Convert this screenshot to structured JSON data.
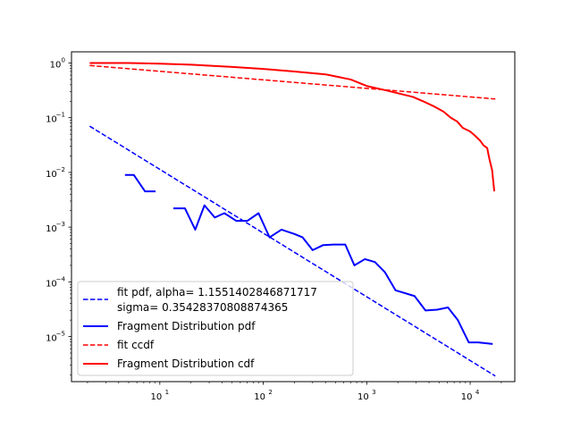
{
  "chart_data": {
    "type": "line",
    "title": "",
    "xlabel": "",
    "ylabel": "",
    "xscale": "log",
    "yscale": "log",
    "xlim": [
      1.4,
      27000
    ],
    "ylim": [
      1.5e-06,
      1.6
    ],
    "grid": false,
    "legend_position": "lower-left",
    "x_ticks": [
      {
        "value": 10,
        "base": "10",
        "exp": "1"
      },
      {
        "value": 100,
        "base": "10",
        "exp": "2"
      },
      {
        "value": 1000,
        "base": "10",
        "exp": "3"
      },
      {
        "value": 10000,
        "base": "10",
        "exp": "4"
      }
    ],
    "y_ticks": [
      {
        "value": 1,
        "base": "10",
        "exp": "0"
      },
      {
        "value": 0.1,
        "base": "10",
        "exp": "−1"
      },
      {
        "value": 0.01,
        "base": "10",
        "exp": "−2"
      },
      {
        "value": 0.001,
        "base": "10",
        "exp": "−3"
      },
      {
        "value": 0.0001,
        "base": "10",
        "exp": "−4"
      },
      {
        "value": 1e-05,
        "base": "10",
        "exp": "−5"
      }
    ],
    "series": [
      {
        "name": "fit pdf, alpha= 1.1551402846871717",
        "name_line2": "sigma= 0.35428370808874365",
        "color": "#0000ff",
        "style": "dashed",
        "segments": [
          [
            [
              2.1,
              0.07
            ],
            [
              17500,
              1.9e-06
            ]
          ]
        ]
      },
      {
        "name": "Fragment Distribution pdf",
        "color": "#0000ff",
        "style": "solid",
        "segments": [
          [
            [
              4.6,
              0.009
            ],
            [
              5.6,
              0.009
            ],
            [
              7.2,
              0.0045
            ],
            [
              9.1,
              0.0045
            ]
          ],
          [
            [
              13.5,
              0.0022
            ],
            [
              17.5,
              0.0022
            ],
            [
              22,
              0.0009
            ],
            [
              27,
              0.0025
            ],
            [
              34,
              0.0015
            ],
            [
              42,
              0.0018
            ],
            [
              55,
              0.0013
            ],
            [
              70,
              0.0013
            ],
            [
              90,
              0.0018
            ],
            [
              115,
              0.00065
            ],
            [
              150,
              0.0009
            ],
            [
              200,
              0.00075
            ],
            [
              240,
              0.00065
            ],
            [
              300,
              0.00038
            ],
            [
              380,
              0.00047
            ],
            [
              480,
              0.00048
            ],
            [
              620,
              0.00048
            ],
            [
              760,
              0.0002
            ],
            [
              960,
              0.00026
            ],
            [
              1200,
              0.00023
            ],
            [
              1500,
              0.00015
            ],
            [
              1900,
              7e-05
            ],
            [
              2900,
              5.5e-05
            ],
            [
              3700,
              3e-05
            ],
            [
              4800,
              3.1e-05
            ],
            [
              6100,
              3.4e-05
            ],
            [
              7600,
              2e-05
            ],
            [
              9700,
              7.8e-06
            ],
            [
              12000,
              7.8e-06
            ],
            [
              16500,
              7.3e-06
            ]
          ]
        ]
      },
      {
        "name": "fit ccdf",
        "color": "#ff0000",
        "style": "dashed",
        "segments": [
          [
            [
              2.1,
              0.9
            ],
            [
              17500,
              0.22
            ]
          ]
        ]
      },
      {
        "name": "Fragment Distribution cdf",
        "color": "#ff0000",
        "style": "solid",
        "segments": [
          [
            [
              2.1,
              1.0
            ],
            [
              5,
              1.0
            ],
            [
              10,
              0.97
            ],
            [
              20,
              0.93
            ],
            [
              50,
              0.85
            ],
            [
              100,
              0.78
            ],
            [
              200,
              0.7
            ],
            [
              400,
              0.62
            ],
            [
              700,
              0.5
            ],
            [
              1000,
              0.38
            ],
            [
              1500,
              0.32
            ],
            [
              2000,
              0.28
            ],
            [
              2800,
              0.24
            ],
            [
              3500,
              0.2
            ],
            [
              4500,
              0.16
            ],
            [
              5500,
              0.13
            ],
            [
              6500,
              0.1
            ],
            [
              7500,
              0.085
            ],
            [
              8500,
              0.065
            ],
            [
              10000,
              0.056
            ],
            [
              11000,
              0.048
            ],
            [
              12500,
              0.038
            ],
            [
              13500,
              0.031
            ],
            [
              14600,
              0.028
            ],
            [
              15400,
              0.017
            ],
            [
              16300,
              0.011
            ],
            [
              17100,
              0.0045
            ]
          ]
        ]
      }
    ]
  }
}
